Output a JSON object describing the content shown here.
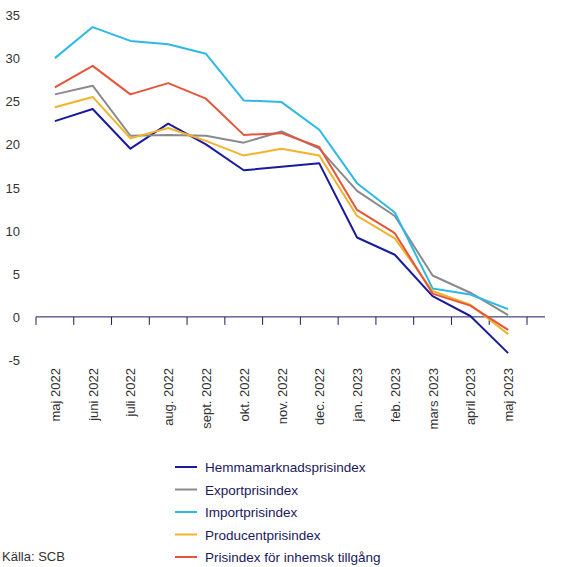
{
  "chart_data": {
    "type": "line",
    "source": "Källa: SCB",
    "categories": [
      "maj 2022",
      "juni 2022",
      "juli 2022",
      "aug. 2022",
      "sept. 2022",
      "okt. 2022",
      "nov. 2022",
      "dec. 2022",
      "jan. 2023",
      "feb. 2023",
      "mars 2023",
      "april 2023",
      "maj 2023"
    ],
    "series": [
      {
        "name": "Hemmamarknadsprisindex",
        "color": "#1a1a9c",
        "values": [
          22.7,
          24.1,
          19.5,
          22.4,
          20.0,
          17.0,
          17.4,
          17.8,
          9.2,
          7.2,
          2.4,
          0.1,
          -4.2
        ]
      },
      {
        "name": "Exportprisindex",
        "color": "#8a8a8a",
        "values": [
          25.8,
          26.8,
          21.0,
          21.1,
          21.0,
          20.2,
          21.5,
          19.5,
          14.6,
          11.7,
          4.8,
          2.8,
          0.2
        ]
      },
      {
        "name": "Importprisindex",
        "color": "#2eb8e6",
        "values": [
          30.0,
          33.6,
          32.0,
          31.6,
          30.5,
          25.1,
          24.9,
          21.7,
          15.5,
          12.1,
          3.3,
          2.6,
          0.9
        ]
      },
      {
        "name": "Producentprisindex",
        "color": "#f2b32a",
        "values": [
          24.3,
          25.5,
          20.7,
          21.9,
          20.4,
          18.7,
          19.5,
          18.7,
          11.7,
          9.1,
          3.0,
          1.4,
          -2.0
        ]
      },
      {
        "name": "Prisindex för inhemsk tillgång",
        "color": "#e5553b",
        "values": [
          26.6,
          29.1,
          25.8,
          27.1,
          25.3,
          21.1,
          21.3,
          19.7,
          12.4,
          9.7,
          2.7,
          1.3,
          -1.5
        ]
      }
    ],
    "ylim": [
      -5,
      35
    ],
    "yticks": [
      -5,
      0,
      5,
      10,
      15,
      20,
      25,
      30,
      35
    ],
    "grid": false,
    "legend": "bottom"
  }
}
